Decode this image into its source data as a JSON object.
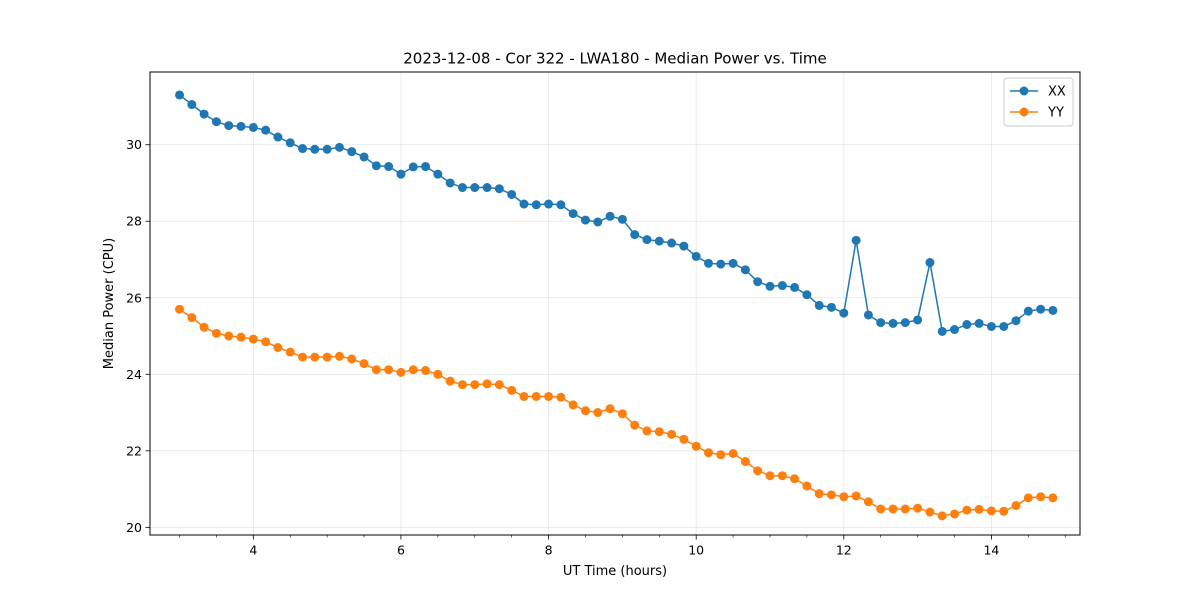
{
  "chart_data": {
    "type": "line",
    "title": "2023-12-08 - Cor 322 - LWA180 - Median Power vs. Time",
    "xlabel": "UT Time (hours)",
    "ylabel": "Median Power (CPU)",
    "xlim": [
      2.6,
      15.2
    ],
    "ylim": [
      19.8,
      31.9
    ],
    "xticks": [
      4,
      6,
      8,
      10,
      12,
      14
    ],
    "xtick_labels": [
      "4",
      "6",
      "8",
      "10",
      "12",
      "14"
    ],
    "yticks": [
      20,
      22,
      24,
      26,
      28,
      30
    ],
    "ytick_labels": [
      "20",
      "22",
      "24",
      "26",
      "28",
      "30"
    ],
    "grid": true,
    "legend_position": "top-right",
    "x": [
      3.0,
      3.167,
      3.333,
      3.5,
      3.667,
      3.833,
      4.0,
      4.167,
      4.333,
      4.5,
      4.667,
      4.833,
      5.0,
      5.167,
      5.333,
      5.5,
      5.667,
      5.833,
      6.0,
      6.167,
      6.333,
      6.5,
      6.667,
      6.833,
      7.0,
      7.167,
      7.333,
      7.5,
      7.667,
      7.833,
      8.0,
      8.167,
      8.333,
      8.5,
      8.667,
      8.833,
      9.0,
      9.167,
      9.333,
      9.5,
      9.667,
      9.833,
      10.0,
      10.167,
      10.333,
      10.5,
      10.667,
      10.833,
      11.0,
      11.167,
      11.333,
      11.5,
      11.667,
      11.833,
      12.0,
      12.167,
      12.333,
      12.5,
      12.667,
      12.833,
      13.0,
      13.167,
      13.333,
      13.5,
      13.667,
      13.833,
      14.0,
      14.167,
      14.333,
      14.5,
      14.667,
      14.833
    ],
    "series": [
      {
        "name": "XX",
        "color": "#1f77b4",
        "values": [
          31.3,
          31.05,
          30.8,
          30.6,
          30.5,
          30.48,
          30.45,
          30.38,
          30.2,
          30.05,
          29.9,
          29.88,
          29.88,
          29.93,
          29.82,
          29.68,
          29.45,
          29.43,
          29.23,
          29.42,
          29.43,
          29.23,
          29.0,
          28.88,
          28.88,
          28.88,
          28.85,
          28.7,
          28.45,
          28.43,
          28.45,
          28.43,
          28.2,
          28.03,
          27.98,
          28.13,
          28.05,
          27.65,
          27.52,
          27.48,
          27.43,
          27.35,
          27.08,
          26.9,
          26.88,
          26.9,
          26.73,
          26.42,
          26.3,
          26.32,
          26.27,
          26.08,
          25.8,
          25.75,
          25.6,
          27.5,
          25.55,
          25.35,
          25.33,
          25.35,
          25.42,
          26.92,
          25.12,
          25.17,
          25.3,
          25.33,
          25.25,
          25.25,
          25.4,
          25.65,
          25.7,
          25.67
        ]
      },
      {
        "name": "YY",
        "color": "#ff7f0e",
        "values": [
          25.7,
          25.48,
          25.23,
          25.07,
          25.0,
          24.97,
          24.92,
          24.85,
          24.7,
          24.58,
          24.45,
          24.45,
          24.45,
          24.47,
          24.4,
          24.28,
          24.12,
          24.12,
          24.05,
          24.12,
          24.1,
          24.0,
          23.82,
          23.73,
          23.73,
          23.75,
          23.73,
          23.58,
          23.42,
          23.42,
          23.42,
          23.4,
          23.2,
          23.05,
          23.0,
          23.1,
          22.97,
          22.67,
          22.52,
          22.5,
          22.43,
          22.3,
          22.12,
          21.95,
          21.9,
          21.93,
          21.72,
          21.48,
          21.35,
          21.35,
          21.27,
          21.08,
          20.88,
          20.85,
          20.8,
          20.82,
          20.67,
          20.48,
          20.48,
          20.48,
          20.5,
          20.4,
          20.3,
          20.35,
          20.45,
          20.47,
          20.43,
          20.42,
          20.57,
          20.77,
          20.8,
          20.77
        ]
      }
    ]
  }
}
